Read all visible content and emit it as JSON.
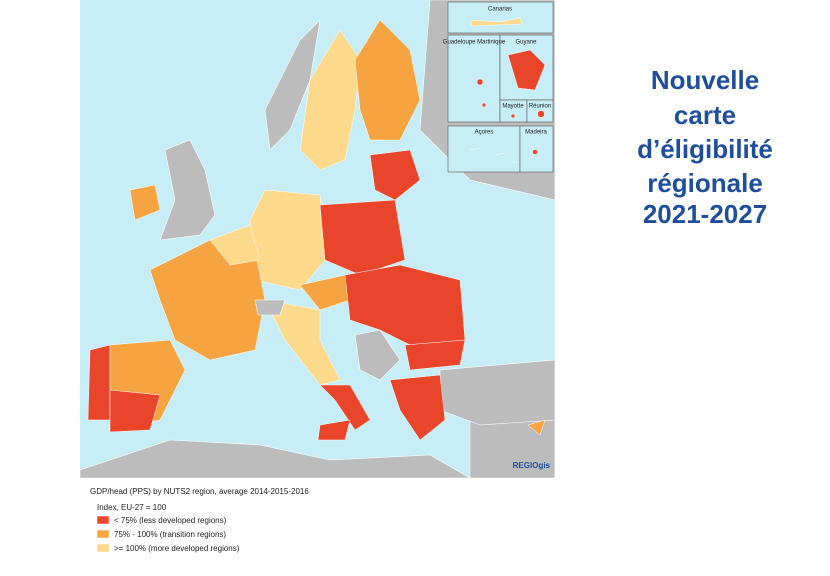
{
  "title": [
    "Nouvelle",
    "carte",
    "d’éligibilité",
    "régionale",
    "2021-2027"
  ],
  "map": {
    "insets": [
      "Canarias",
      "Guadeloupe Martinique",
      "Guyane",
      "Mayotte",
      "Réunion",
      "Açores",
      "Madeira"
    ],
    "credit": "REGIOgis"
  },
  "legend": {
    "title": "GDP/head (PPS) by NUTS2 region, average 2014-2015-2016",
    "subtitle": "Index, EU-27 = 100",
    "items": [
      "< 75% (less developed regions)",
      "75% - 100% (transition regions)",
      ">= 100% (more developed regions)"
    ]
  }
}
